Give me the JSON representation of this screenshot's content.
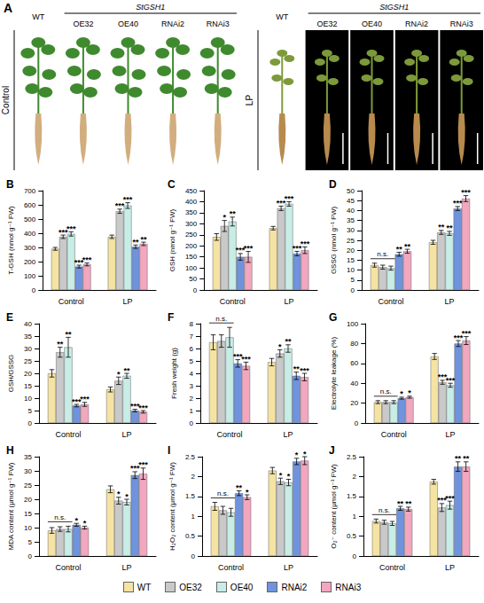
{
  "panel_a": {
    "letter": "A",
    "group_label": "StGSH1",
    "lines": [
      "WT",
      "OE32",
      "OE40",
      "RNAi2",
      "RNAi3"
    ],
    "conditions": [
      "Control",
      "LP"
    ]
  },
  "legend": "bottom",
  "chart_data": [
    {
      "type": "bar",
      "panel": "B",
      "ylabel": "T-GSH (nmol g⁻¹ FW)",
      "categories": [
        "Control",
        "LP"
      ],
      "ylim": [
        0,
        700
      ],
      "yticks": [
        0,
        100,
        200,
        300,
        400,
        500,
        600,
        700
      ],
      "grid": false,
      "series": [
        {
          "name": "WT",
          "color": "#f5e3a3",
          "values": [
            290,
            375
          ],
          "errors": [
            10,
            12
          ],
          "significance": [
            null,
            null
          ]
        },
        {
          "name": "OE32",
          "color": "#c9c9c9",
          "values": [
            375,
            555
          ],
          "errors": [
            12,
            15
          ],
          "significance": [
            "***",
            "***"
          ]
        },
        {
          "name": "OE40",
          "color": "#c8ece6",
          "values": [
            395,
            595
          ],
          "errors": [
            15,
            20
          ],
          "significance": [
            "***",
            "***"
          ]
        },
        {
          "name": "RNAi2",
          "color": "#6f93dd",
          "values": [
            165,
            305
          ],
          "errors": [
            10,
            12
          ],
          "significance": [
            "***",
            "**"
          ]
        },
        {
          "name": "RNAi3",
          "color": "#f2a7bf",
          "values": [
            180,
            325
          ],
          "errors": [
            10,
            12
          ],
          "significance": [
            "***",
            "**"
          ]
        }
      ]
    },
    {
      "type": "bar",
      "panel": "C",
      "ylabel": "GSH (nmol g⁻¹ FW)",
      "categories": [
        "Control",
        "LP"
      ],
      "ylim": [
        0,
        450
      ],
      "yticks": [
        0,
        50,
        100,
        150,
        200,
        250,
        300,
        350,
        400,
        450
      ],
      "grid": false,
      "series": [
        {
          "name": "WT",
          "color": "#f5e3a3",
          "values": [
            240,
            280
          ],
          "errors": [
            15,
            8
          ],
          "significance": [
            null,
            null
          ]
        },
        {
          "name": "OE32",
          "color": "#c9c9c9",
          "values": [
            290,
            370
          ],
          "errors": [
            25,
            10
          ],
          "significance": [
            "*",
            "***"
          ]
        },
        {
          "name": "OE40",
          "color": "#c8ece6",
          "values": [
            310,
            390
          ],
          "errors": [
            20,
            10
          ],
          "significance": [
            "**",
            "***"
          ]
        },
        {
          "name": "RNAi2",
          "color": "#6f93dd",
          "values": [
            150,
            165
          ],
          "errors": [
            15,
            10
          ],
          "significance": [
            "***",
            "***"
          ]
        },
        {
          "name": "RNAi3",
          "color": "#f2a7bf",
          "values": [
            150,
            180
          ],
          "errors": [
            25,
            15
          ],
          "significance": [
            "***",
            "***"
          ]
        }
      ]
    },
    {
      "type": "bar",
      "panel": "D",
      "ylabel": "GSSG (nmol g⁻¹ FW)",
      "categories": [
        "Control",
        "LP"
      ],
      "ylim": [
        0,
        50
      ],
      "yticks": [
        0,
        5,
        10,
        15,
        20,
        25,
        30,
        35,
        40,
        45,
        50
      ],
      "grid": false,
      "ns": {
        "label": "n.s.",
        "category": "Control",
        "series": [
          "WT",
          "OE32",
          "OE40"
        ]
      },
      "series": [
        {
          "name": "WT",
          "color": "#f5e3a3",
          "values": [
            12.5,
            24
          ],
          "errors": [
            1,
            1
          ],
          "significance": [
            null,
            null
          ]
        },
        {
          "name": "OE32",
          "color": "#c9c9c9",
          "values": [
            11.5,
            29
          ],
          "errors": [
            1,
            1
          ],
          "significance": [
            null,
            "**"
          ]
        },
        {
          "name": "OE40",
          "color": "#c8ece6",
          "values": [
            11,
            28.5
          ],
          "errors": [
            1,
            1
          ],
          "significance": [
            null,
            "**"
          ]
        },
        {
          "name": "RNAi2",
          "color": "#6f93dd",
          "values": [
            18,
            41
          ],
          "errors": [
            1,
            1
          ],
          "significance": [
            "**",
            "***"
          ]
        },
        {
          "name": "RNAi3",
          "color": "#f2a7bf",
          "values": [
            19.5,
            46
          ],
          "errors": [
            1,
            1.5
          ],
          "significance": [
            "**",
            "***"
          ]
        }
      ]
    },
    {
      "type": "bar",
      "panel": "E",
      "ylabel": "GSH/GSSG",
      "categories": [
        "Control",
        "LP"
      ],
      "ylim": [
        0,
        40
      ],
      "yticks": [
        0,
        5,
        10,
        15,
        20,
        25,
        30,
        35,
        40
      ],
      "grid": false,
      "series": [
        {
          "name": "WT",
          "color": "#f5e3a3",
          "values": [
            20,
            13.5
          ],
          "errors": [
            1.5,
            1
          ],
          "significance": [
            null,
            null
          ]
        },
        {
          "name": "OE32",
          "color": "#c9c9c9",
          "values": [
            28.5,
            17
          ],
          "errors": [
            2,
            1.5
          ],
          "significance": [
            "**",
            "*"
          ]
        },
        {
          "name": "OE40",
          "color": "#c8ece6",
          "values": [
            30.5,
            19
          ],
          "errors": [
            4,
            1
          ],
          "significance": [
            "**",
            "**"
          ]
        },
        {
          "name": "RNAi2",
          "color": "#6f93dd",
          "values": [
            7,
            5
          ],
          "errors": [
            0.5,
            0.5
          ],
          "significance": [
            "***",
            "***"
          ]
        },
        {
          "name": "RNAi3",
          "color": "#f2a7bf",
          "values": [
            7.5,
            4.5
          ],
          "errors": [
            0.8,
            0.5
          ],
          "significance": [
            "***",
            "***"
          ]
        }
      ]
    },
    {
      "type": "bar",
      "panel": "F",
      "ylabel": "Fresh weight (g)",
      "categories": [
        "Control",
        "LP"
      ],
      "ylim": [
        0,
        8
      ],
      "yticks": [
        0,
        1,
        2,
        3,
        4,
        5,
        6,
        7,
        8
      ],
      "grid": false,
      "ns": {
        "label": "n.s.",
        "category": "Control",
        "series": [
          "WT",
          "OE32",
          "OE40"
        ]
      },
      "series": [
        {
          "name": "WT",
          "color": "#f5e3a3",
          "values": [
            6.5,
            4.9
          ],
          "errors": [
            0.6,
            0.3
          ],
          "significance": [
            null,
            null
          ]
        },
        {
          "name": "OE32",
          "color": "#c9c9c9",
          "values": [
            6.6,
            5.6
          ],
          "errors": [
            0.5,
            0.3
          ],
          "significance": [
            null,
            "*"
          ]
        },
        {
          "name": "OE40",
          "color": "#c8ece6",
          "values": [
            6.9,
            6.0
          ],
          "errors": [
            0.8,
            0.3
          ],
          "significance": [
            null,
            "**"
          ]
        },
        {
          "name": "RNAi2",
          "color": "#6f93dd",
          "values": [
            4.8,
            3.8
          ],
          "errors": [
            0.3,
            0.3
          ],
          "significance": [
            "***",
            "**"
          ]
        },
        {
          "name": "RNAi3",
          "color": "#f2a7bf",
          "values": [
            4.6,
            3.7
          ],
          "errors": [
            0.3,
            0.3
          ],
          "significance": [
            "***",
            "***"
          ]
        }
      ]
    },
    {
      "type": "bar",
      "panel": "G",
      "ylabel": "Electrolyte leakage (%)",
      "categories": [
        "Control",
        "LP"
      ],
      "ylim": [
        0,
        100
      ],
      "yticks": [
        0,
        20,
        40,
        60,
        80,
        100
      ],
      "grid": false,
      "ns": {
        "label": "n.s.",
        "category": "Control",
        "series": [
          "WT",
          "OE32",
          "OE40"
        ]
      },
      "series": [
        {
          "name": "WT",
          "color": "#f5e3a3",
          "values": [
            21,
            67
          ],
          "errors": [
            1.5,
            3
          ],
          "significance": [
            null,
            null
          ]
        },
        {
          "name": "OE32",
          "color": "#c9c9c9",
          "values": [
            21,
            41
          ],
          "errors": [
            1.5,
            2
          ],
          "significance": [
            null,
            "***"
          ]
        },
        {
          "name": "OE40",
          "color": "#c8ece6",
          "values": [
            21,
            38
          ],
          "errors": [
            1.5,
            2
          ],
          "significance": [
            null,
            "***"
          ]
        },
        {
          "name": "RNAi2",
          "color": "#6f93dd",
          "values": [
            25,
            80
          ],
          "errors": [
            1,
            3
          ],
          "significance": [
            "*",
            "***"
          ]
        },
        {
          "name": "RNAi3",
          "color": "#f2a7bf",
          "values": [
            26,
            83
          ],
          "errors": [
            1,
            4
          ],
          "significance": [
            "*",
            "***"
          ]
        }
      ]
    },
    {
      "type": "bar",
      "panel": "H",
      "ylabel": "MDA content (μmol g⁻¹ FW)",
      "categories": [
        "Control",
        "LP"
      ],
      "ylim": [
        0,
        35
      ],
      "yticks": [
        0,
        5,
        10,
        15,
        20,
        25,
        30,
        35
      ],
      "grid": false,
      "ns": {
        "label": "n.s.",
        "category": "Control",
        "series": [
          "WT",
          "OE32",
          "OE40"
        ]
      },
      "series": [
        {
          "name": "WT",
          "color": "#f5e3a3",
          "values": [
            9,
            23.5
          ],
          "errors": [
            1,
            1.2
          ],
          "significance": [
            null,
            null
          ]
        },
        {
          "name": "OE32",
          "color": "#c9c9c9",
          "values": [
            9.5,
            19.5
          ],
          "errors": [
            0.8,
            1.2
          ],
          "significance": [
            null,
            "*"
          ]
        },
        {
          "name": "OE40",
          "color": "#c8ece6",
          "values": [
            9.5,
            19
          ],
          "errors": [
            1,
            1
          ],
          "significance": [
            null,
            "*"
          ]
        },
        {
          "name": "RNAi2",
          "color": "#6f93dd",
          "values": [
            11,
            28.5
          ],
          "errors": [
            0.5,
            1.2
          ],
          "significance": [
            "*",
            "***"
          ]
        },
        {
          "name": "RNAi3",
          "color": "#f2a7bf",
          "values": [
            10,
            29
          ],
          "errors": [
            0.5,
            2
          ],
          "significance": [
            "*",
            "***"
          ]
        }
      ]
    },
    {
      "type": "bar",
      "panel": "I",
      "ylabel": "H₂O₂ content (μmol g⁻¹ FW)",
      "categories": [
        "Control",
        "LP"
      ],
      "ylim": [
        0,
        2.5
      ],
      "yticks": [
        0,
        0.5,
        1,
        1.5,
        2,
        2.5
      ],
      "grid": false,
      "ns": {
        "label": "n.s.",
        "category": "Control",
        "series": [
          "WT",
          "OE32",
          "OE40"
        ]
      },
      "series": [
        {
          "name": "WT",
          "color": "#f5e3a3",
          "values": [
            1.25,
            2.15
          ],
          "errors": [
            0.1,
            0.08
          ],
          "significance": [
            null,
            null
          ]
        },
        {
          "name": "OE32",
          "color": "#c9c9c9",
          "values": [
            1.15,
            1.88
          ],
          "errors": [
            0.1,
            0.08
          ],
          "significance": [
            null,
            "*"
          ]
        },
        {
          "name": "OE40",
          "color": "#c8ece6",
          "values": [
            1.1,
            1.85
          ],
          "errors": [
            0.1,
            0.08
          ],
          "significance": [
            null,
            "*"
          ]
        },
        {
          "name": "RNAi2",
          "color": "#6f93dd",
          "values": [
            1.58,
            2.38
          ],
          "errors": [
            0.06,
            0.08
          ],
          "significance": [
            "**",
            "*"
          ]
        },
        {
          "name": "RNAi3",
          "color": "#f2a7bf",
          "values": [
            1.48,
            2.4
          ],
          "errors": [
            0.06,
            0.1
          ],
          "significance": [
            "*",
            "*"
          ]
        }
      ]
    },
    {
      "type": "bar",
      "panel": "J",
      "ylabel": "O₂⁻ content (μmol g⁻¹ FW)",
      "categories": [
        "Control",
        "LP"
      ],
      "ylim": [
        0,
        2.5
      ],
      "yticks": [
        0,
        0.5,
        1,
        1.5,
        2,
        2.5
      ],
      "grid": false,
      "ns": {
        "label": "n.s.",
        "category": "Control",
        "series": [
          "WT",
          "OE32",
          "OE40"
        ]
      },
      "series": [
        {
          "name": "WT",
          "color": "#f5e3a3",
          "values": [
            0.88,
            1.87
          ],
          "errors": [
            0.05,
            0.06
          ],
          "significance": [
            null,
            null
          ]
        },
        {
          "name": "OE32",
          "color": "#c9c9c9",
          "values": [
            0.85,
            1.22
          ],
          "errors": [
            0.05,
            0.1
          ],
          "significance": [
            null,
            "***"
          ]
        },
        {
          "name": "OE40",
          "color": "#c8ece6",
          "values": [
            0.82,
            1.28
          ],
          "errors": [
            0.05,
            0.1
          ],
          "significance": [
            null,
            "***"
          ]
        },
        {
          "name": "RNAi2",
          "color": "#6f93dd",
          "values": [
            1.2,
            2.25
          ],
          "errors": [
            0.05,
            0.12
          ],
          "significance": [
            "**",
            "**"
          ]
        },
        {
          "name": "RNAi3",
          "color": "#f2a7bf",
          "values": [
            1.18,
            2.25
          ],
          "errors": [
            0.05,
            0.12
          ],
          "significance": [
            "**",
            "**"
          ]
        }
      ]
    }
  ]
}
